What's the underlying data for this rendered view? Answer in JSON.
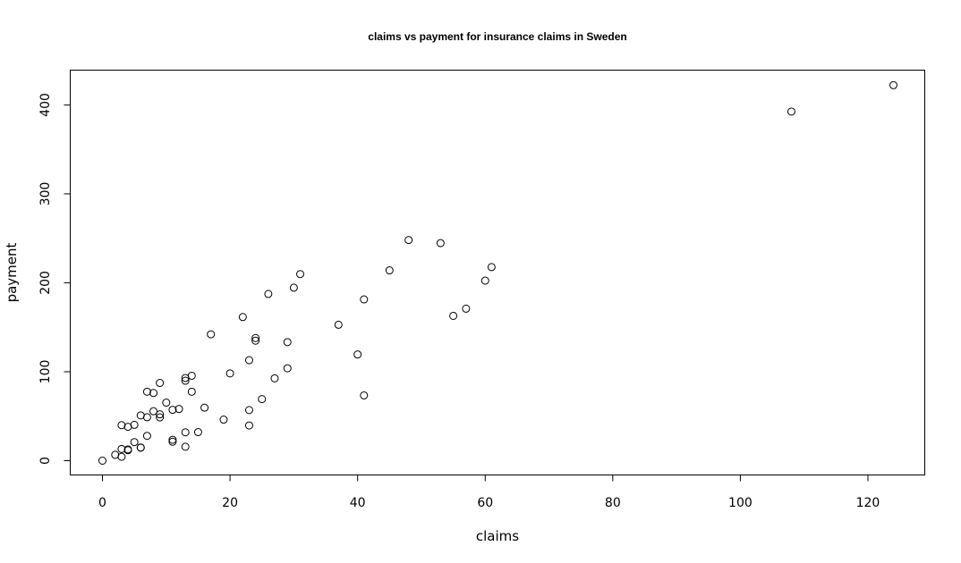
{
  "chart_data": {
    "type": "scatter",
    "title": "claims vs payment for insurance claims in Sweden",
    "xlabel": "claims",
    "ylabel": "payment",
    "xlim": [
      0,
      124
    ],
    "ylim": [
      0,
      422
    ],
    "xticks": [
      0,
      20,
      40,
      60,
      80,
      100,
      120
    ],
    "yticks": [
      0,
      100,
      200,
      300,
      400
    ],
    "grid": false,
    "legend": "none",
    "marker": "open-circle",
    "points": [
      [
        108,
        392.5
      ],
      [
        19,
        46.2
      ],
      [
        13,
        15.7
      ],
      [
        124,
        422.2
      ],
      [
        40,
        119.4
      ],
      [
        57,
        170.9
      ],
      [
        23,
        56.9
      ],
      [
        14,
        77.5
      ],
      [
        45,
        214.0
      ],
      [
        10,
        65.3
      ],
      [
        5,
        20.9
      ],
      [
        48,
        248.1
      ],
      [
        11,
        23.5
      ],
      [
        23,
        39.6
      ],
      [
        7,
        48.8
      ],
      [
        2,
        6.6
      ],
      [
        24,
        134.9
      ],
      [
        6,
        50.9
      ],
      [
        3,
        4.4
      ],
      [
        23,
        113.0
      ],
      [
        6,
        14.8
      ],
      [
        9,
        48.7
      ],
      [
        9,
        52.1
      ],
      [
        3,
        13.2
      ],
      [
        29,
        103.9
      ],
      [
        7,
        77.5
      ],
      [
        4,
        11.8
      ],
      [
        20,
        98.1
      ],
      [
        7,
        27.9
      ],
      [
        4,
        38.1
      ],
      [
        0,
        0.0
      ],
      [
        25,
        69.2
      ],
      [
        6,
        14.6
      ],
      [
        5,
        40.3
      ],
      [
        22,
        161.5
      ],
      [
        11,
        57.2
      ],
      [
        61,
        217.6
      ],
      [
        12,
        58.1
      ],
      [
        4,
        12.6
      ],
      [
        16,
        59.6
      ],
      [
        13,
        89.9
      ],
      [
        60,
        202.4
      ],
      [
        41,
        181.3
      ],
      [
        37,
        152.8
      ],
      [
        55,
        162.8
      ],
      [
        41,
        73.4
      ],
      [
        11,
        21.3
      ],
      [
        27,
        92.6
      ],
      [
        8,
        76.1
      ],
      [
        3,
        39.9
      ],
      [
        17,
        142.1
      ],
      [
        13,
        93.0
      ],
      [
        13,
        31.9
      ],
      [
        15,
        32.1
      ],
      [
        8,
        55.6
      ],
      [
        29,
        133.3
      ],
      [
        30,
        194.5
      ],
      [
        24,
        137.9
      ],
      [
        9,
        87.4
      ],
      [
        31,
        209.8
      ],
      [
        14,
        95.5
      ],
      [
        53,
        244.6
      ],
      [
        26,
        187.5
      ]
    ]
  }
}
